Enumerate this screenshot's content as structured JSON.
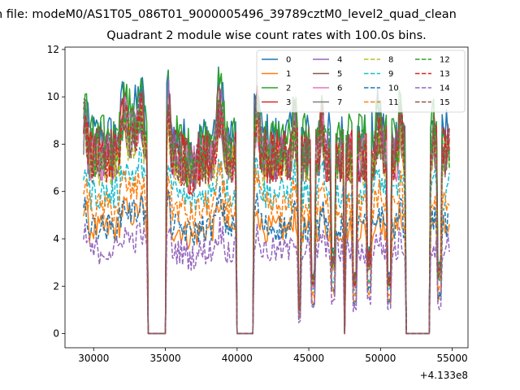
{
  "figure": {
    "suptitle": "n file: modeM0/AS1T05_086T01_9000005496_39789cztM0_level2_quad_clean"
  },
  "chart_data": {
    "type": "line",
    "title": "Quadrant 2 module wise count rates with 100.0s bins.",
    "xlabel": "",
    "ylabel": "",
    "xlim": [
      28000,
      56100
    ],
    "ylim": [
      -0.6,
      12.1
    ],
    "x_offset_label": "+4.133e8",
    "x_ticks": [
      30000,
      35000,
      40000,
      45000,
      50000,
      55000
    ],
    "x_tick_labels": [
      "30000",
      "35000",
      "40000",
      "45000",
      "50000",
      "55000"
    ],
    "y_ticks": [
      0,
      2,
      4,
      6,
      8,
      10,
      12
    ],
    "y_tick_labels": [
      "0",
      "2",
      "4",
      "6",
      "8",
      "10",
      "12"
    ],
    "legend_position": "top-right",
    "legend_columns": 4,
    "data_segments": [
      [
        29300,
        33700
      ],
      [
        35100,
        39900
      ],
      [
        41200,
        47400
      ],
      [
        47600,
        51700
      ],
      [
        53500,
        54800
      ]
    ],
    "zero_gaps": [
      [
        33800,
        35000
      ],
      [
        40000,
        41100
      ],
      [
        47500,
        47500
      ],
      [
        51800,
        53400
      ]
    ],
    "series": [
      {
        "name": "0",
        "color": "#1f77b4",
        "dashed": false,
        "base": 8.3,
        "amp": 1.1
      },
      {
        "name": "1",
        "color": "#ff7f0e",
        "dashed": false,
        "base": 4.4,
        "amp": 0.6
      },
      {
        "name": "2",
        "color": "#2ca02c",
        "dashed": false,
        "base": 8.2,
        "amp": 1.1
      },
      {
        "name": "3",
        "color": "#d62728",
        "dashed": false,
        "base": 7.6,
        "amp": 1.2
      },
      {
        "name": "4",
        "color": "#9467bd",
        "dashed": false,
        "base": 7.5,
        "amp": 1.1
      },
      {
        "name": "5",
        "color": "#8c564b",
        "dashed": false,
        "base": 7.6,
        "amp": 1.2
      },
      {
        "name": "6",
        "color": "#e377c2",
        "dashed": false,
        "base": 7.4,
        "amp": 1.0
      },
      {
        "name": "7",
        "color": "#7f7f7f",
        "dashed": false,
        "base": 7.4,
        "amp": 1.0
      },
      {
        "name": "8",
        "color": "#bcbd22",
        "dashed": true,
        "base": 7.1,
        "amp": 0.9
      },
      {
        "name": "9",
        "color": "#17becf",
        "dashed": true,
        "base": 5.9,
        "amp": 0.7
      },
      {
        "name": "10",
        "color": "#1f77b4",
        "dashed": true,
        "base": 4.5,
        "amp": 0.6
      },
      {
        "name": "11",
        "color": "#ff7f0e",
        "dashed": true,
        "base": 5.3,
        "amp": 0.7
      },
      {
        "name": "12",
        "color": "#2ca02c",
        "dashed": true,
        "base": 7.6,
        "amp": 1.1
      },
      {
        "name": "13",
        "color": "#d62728",
        "dashed": true,
        "base": 7.4,
        "amp": 1.1
      },
      {
        "name": "14",
        "color": "#9467bd",
        "dashed": true,
        "base": 3.5,
        "amp": 0.6
      },
      {
        "name": "15",
        "color": "#8c564b",
        "dashed": true,
        "base": 7.4,
        "amp": 1.1
      }
    ]
  }
}
